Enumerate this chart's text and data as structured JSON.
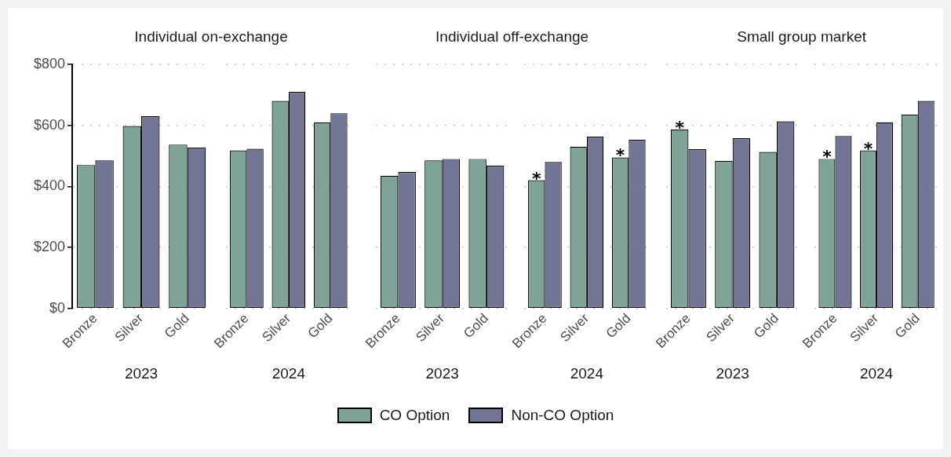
{
  "chart_data": [
    {
      "type": "bar",
      "title": "Individual on-exchange",
      "xlabel": "2023",
      "categories": [
        "Bronze",
        "Silver",
        "Gold"
      ],
      "series": [
        {
          "name": "CO Option",
          "color": "#7fa398",
          "values": [
            470,
            598,
            537
          ]
        },
        {
          "name": "Non-CO Option",
          "color": "#737595",
          "values": [
            485,
            630,
            527
          ]
        }
      ],
      "ylim": [
        0,
        800
      ],
      "yticks": [
        {
          "value": 0,
          "label": "$0"
        },
        {
          "value": 200,
          "label": "$200"
        },
        {
          "value": 400,
          "label": "$400"
        },
        {
          "value": 600,
          "label": "$600"
        },
        {
          "value": 800,
          "label": "$800"
        }
      ],
      "grid": "y",
      "legend": "bottom"
    },
    {
      "type": "bar",
      "xlabel": "2024",
      "categories": [
        "Bronze",
        "Silver",
        "Gold"
      ],
      "series": [
        {
          "color": "#7fa398",
          "values": [
            518,
            680,
            610
          ]
        },
        {
          "color": "#737595",
          "values": [
            523,
            710,
            640
          ]
        }
      ],
      "ylim": [
        0,
        800
      ],
      "yticks": [
        0,
        200,
        400,
        600,
        800
      ],
      "grid": "y",
      "tick_labels": "x"
    },
    {
      "type": "bar",
      "title": "Individual off-exchange",
      "xlabel": "2023",
      "categories": [
        "Bronze",
        "Silver",
        "Gold"
      ],
      "series": [
        {
          "color": "#7fa398",
          "values": [
            435,
            485,
            490
          ]
        },
        {
          "color": "#737595",
          "values": [
            447,
            490,
            468
          ]
        }
      ],
      "ylim": [
        0,
        800
      ],
      "yticks": [
        0,
        200,
        400,
        600,
        800
      ],
      "grid": "y",
      "tick_labels": "x"
    },
    {
      "type": "bar",
      "xlabel": "2024",
      "categories": [
        "Bronze",
        "Silver",
        "Gold"
      ],
      "series": [
        {
          "color": "#7fa398",
          "values": [
            420,
            530,
            495
          ]
        },
        {
          "color": "#737595",
          "values": [
            480,
            563,
            553
          ]
        }
      ],
      "annotations": [
        {
          "text": "*",
          "x": "Bronze",
          "y": 420
        },
        {
          "text": "*",
          "x": "Gold",
          "y": 495
        }
      ],
      "ylim": [
        0,
        800
      ],
      "yticks": [
        0,
        200,
        400,
        600,
        800
      ],
      "grid": "y",
      "tick_labels": "x"
    },
    {
      "type": "bar",
      "title": "Small group market",
      "xlabel": "2023",
      "categories": [
        "Bronze",
        "Silver",
        "Gold"
      ],
      "series": [
        {
          "color": "#7fa398",
          "values": [
            587,
            483,
            513
          ]
        },
        {
          "color": "#737595",
          "values": [
            522,
            558,
            613
          ]
        }
      ],
      "annotations": [
        {
          "text": "*",
          "x": "Bronze",
          "y": 587
        }
      ],
      "ylim": [
        0,
        800
      ],
      "yticks": [
        0,
        200,
        400,
        600,
        800
      ],
      "grid": "y",
      "tick_labels": "x"
    },
    {
      "type": "bar",
      "xlabel": "2024",
      "categories": [
        "Bronze",
        "Silver",
        "Gold"
      ],
      "series": [
        {
          "color": "#7fa398",
          "values": [
            490,
            518,
            635
          ]
        },
        {
          "color": "#737595",
          "values": [
            565,
            610,
            680
          ]
        }
      ],
      "annotations": [
        {
          "text": "*",
          "x": "Bronze",
          "y": 490
        },
        {
          "text": "*",
          "x": "Silver",
          "y": 518
        }
      ],
      "ylim": [
        0,
        800
      ],
      "yticks": [
        0,
        200,
        400,
        600,
        800
      ],
      "grid": "y",
      "tick_labels": "x"
    }
  ]
}
